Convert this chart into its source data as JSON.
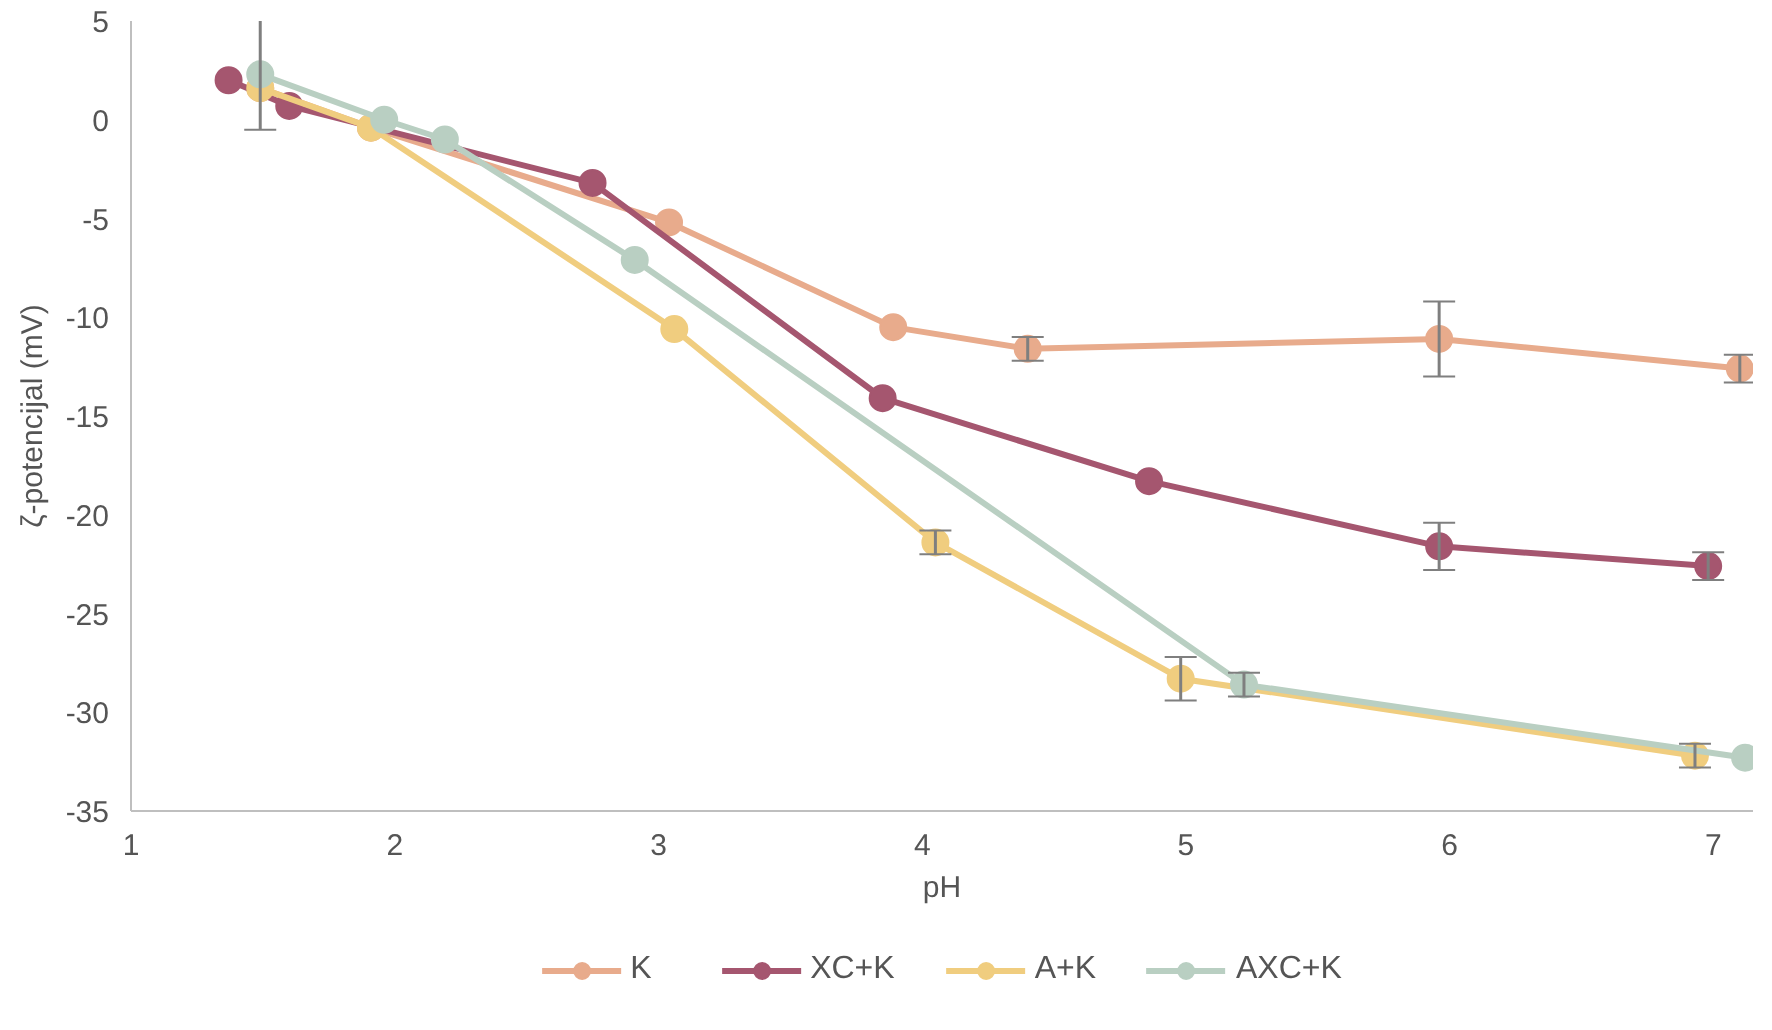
{
  "chart_data": {
    "type": "line",
    "xlabel": "pH",
    "ylabel": "ζ-potencijal (mV)",
    "xlim": [
      1,
      7.15
    ],
    "ylim": [
      -35,
      5
    ],
    "xticks": [
      1,
      2,
      3,
      4,
      5,
      6,
      7
    ],
    "yticks": [
      5,
      0,
      -5,
      -10,
      -15,
      -20,
      -25,
      -30,
      -35
    ],
    "grid": false,
    "legend": "bottom",
    "marker": "circle",
    "line_style": "solid",
    "series": [
      {
        "name": "K",
        "color": "#e8ab8c",
        "x": [
          1.49,
          1.91,
          3.04,
          3.89,
          4.4,
          5.96,
          7.1
        ],
        "values": [
          1.6,
          -0.4,
          -5.2,
          -10.5,
          -11.6,
          -11.1,
          -12.6
        ],
        "errors": [
          null,
          null,
          null,
          null,
          0.6,
          1.9,
          0.7
        ]
      },
      {
        "name": "XC+K",
        "color": "#a5566f",
        "x": [
          1.37,
          1.6,
          2.75,
          3.85,
          4.86,
          5.96,
          6.98
        ],
        "values": [
          2.0,
          0.7,
          -3.2,
          -14.1,
          -18.3,
          -21.6,
          -22.6
        ],
        "errors": [
          null,
          null,
          null,
          null,
          null,
          1.2,
          0.7
        ]
      },
      {
        "name": "A+K",
        "color": "#f0cd7f",
        "x": [
          1.49,
          1.91,
          3.06,
          4.05,
          4.98,
          6.93
        ],
        "values": [
          1.6,
          -0.4,
          -10.6,
          -21.4,
          -28.3,
          -32.2
        ],
        "errors": [
          null,
          null,
          null,
          0.6,
          1.1,
          0.6
        ]
      },
      {
        "name": "AXC+K",
        "color": "#b9cfc2",
        "x": [
          1.49,
          1.96,
          2.19,
          2.91,
          5.22,
          7.12
        ],
        "values": [
          2.3,
          0.0,
          -1.0,
          -7.1,
          -28.6,
          -32.3
        ],
        "errors": [
          2.8,
          null,
          null,
          null,
          0.6,
          null
        ]
      }
    ]
  }
}
